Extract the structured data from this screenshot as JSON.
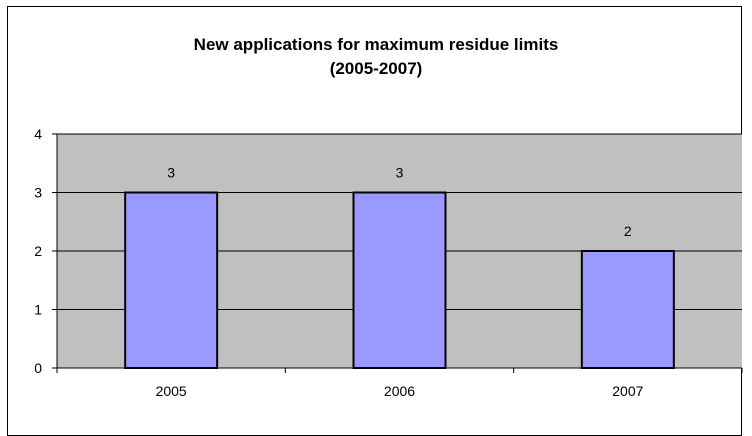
{
  "chart_data": {
    "type": "bar",
    "title": "New applications for maximum residue limits",
    "subtitle": "(2005-2007)",
    "categories": [
      "2005",
      "2006",
      "2007"
    ],
    "values": [
      3,
      3,
      2
    ],
    "data_labels": [
      "3",
      "3",
      "2"
    ],
    "ylim": [
      0,
      4
    ],
    "y_ticks": [
      "0",
      "1",
      "2",
      "3",
      "4"
    ],
    "grid": true,
    "legend": "none",
    "xlabel": "",
    "ylabel": "",
    "colors": {
      "bar_fill": "#9999ff",
      "bar_stroke": "#000000",
      "plot_background": "#c0c0c0",
      "gridline": "#000000"
    }
  }
}
